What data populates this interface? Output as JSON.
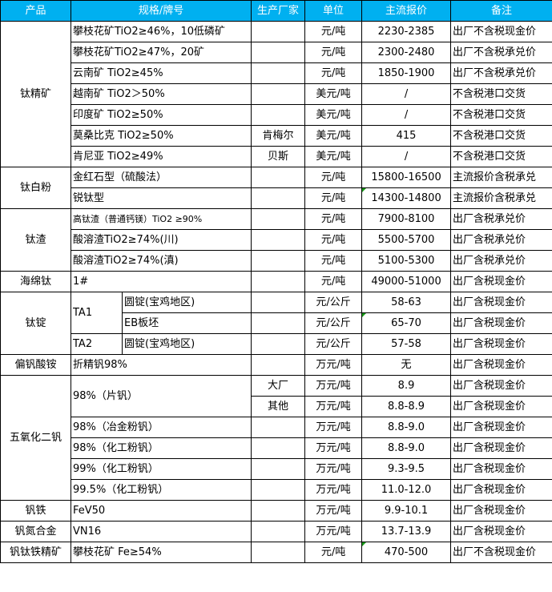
{
  "header": {
    "product": "产品",
    "spec": "规格/牌号",
    "maker": "生产厂家",
    "unit": "单位",
    "price": "主流报价",
    "note": "备注"
  },
  "colors": {
    "header_bg": "#00b0f0",
    "header_text": "#ffffff",
    "comment_marker": "#1a9b1a"
  },
  "products": [
    {
      "name": "钛精矿",
      "items": [
        {
          "spec": "攀枝花矿TiO2≥46%，10低磷矿",
          "maker": "",
          "unit": "元/吨",
          "price": "2230-2385",
          "note": "出厂不含税现金价"
        },
        {
          "spec": "攀枝花矿TiO2≥47%，20矿",
          "maker": "",
          "unit": "元/吨",
          "price": "2300-2480",
          "note": "出厂不含税承兑价"
        },
        {
          "spec": "云南矿 TiO2≥45%",
          "maker": "",
          "unit": "元/吨",
          "price": "1850-1900",
          "note": "出厂不含税承兑价"
        },
        {
          "spec": "越南矿 TiO2＞50%",
          "maker": "",
          "unit": "美元/吨",
          "price": "/",
          "note": "不含税港口交货"
        },
        {
          "spec": "印度矿 TiO2≥50%",
          "maker": "",
          "unit": "美元/吨",
          "price": "/",
          "note": "不含税港口交货"
        },
        {
          "spec": "莫桑比克 TiO2≥50%",
          "maker": "肯梅尔",
          "unit": "美元/吨",
          "price": "415",
          "note": "不含税港口交货"
        },
        {
          "spec": "肯尼亚 TiO2≥49%",
          "maker": "贝斯",
          "unit": "美元/吨",
          "price": "/",
          "note": "不含税港口交货"
        }
      ]
    },
    {
      "name": "钛白粉",
      "items": [
        {
          "spec": "金红石型（硫酸法）",
          "maker": "",
          "unit": "元/吨",
          "price": "15800-16500",
          "note": "主流报价含税承兑"
        },
        {
          "spec": "锐钛型",
          "maker": "",
          "unit": "元/吨",
          "price": "14300-14800",
          "note": "主流报价含税承兑",
          "marked": true
        }
      ]
    },
    {
      "name": "钛渣",
      "items": [
        {
          "spec": "高钛渣（普通钙镁）TiO2 ≥90%",
          "small": true,
          "maker": "",
          "unit": "元/吨",
          "price": "7900-8100",
          "note": "出厂含税承兑价"
        },
        {
          "spec": "酸溶渣TiO2≥74%(川)",
          "maker": "",
          "unit": "元/吨",
          "price": "5500-5700",
          "note": "出厂含税承兑价"
        },
        {
          "spec": "酸溶渣TiO2≥74%(滇)",
          "maker": "",
          "unit": "元/吨",
          "price": "5100-5300",
          "note": "出厂含税承兑价"
        }
      ]
    },
    {
      "name": "海绵钛",
      "items": [
        {
          "spec": "1#",
          "maker": "",
          "unit": "元/吨",
          "price": "49000-51000",
          "note": "出厂含税现金价"
        }
      ]
    },
    {
      "name": "钛锭",
      "items": [
        {
          "spec": "TA1",
          "sub": "圆锭(宝鸡地区)",
          "maker": "",
          "unit": "元/公斤",
          "price": "58-63",
          "note": "出厂含税现金价"
        },
        {
          "spec": "TA1",
          "sub": "EB板坯",
          "maker": "",
          "unit": "元/公斤",
          "price": "65-70",
          "note": "出厂含税现金价",
          "marked": true
        },
        {
          "spec": "TA2",
          "sub": "圆锭(宝鸡地区)",
          "maker": "",
          "unit": "元/公斤",
          "price": "57-58",
          "note": "出厂含税现金价"
        }
      ]
    },
    {
      "name": "偏钒酸铵",
      "items": [
        {
          "spec": "折精钒98%",
          "maker": "",
          "unit": "万元/吨",
          "price": "无",
          "note": "出厂含税现金价"
        }
      ]
    },
    {
      "name": "五氧化二钒",
      "items": [
        {
          "spec": "98%（片钒）",
          "maker": "大厂",
          "unit": "万元/吨",
          "price": "8.9",
          "note": "出厂含税现金价"
        },
        {
          "spec": "98%（片钒）",
          "maker": "其他",
          "unit": "万元/吨",
          "price": "8.8-8.9",
          "note": "出厂含税现金价"
        },
        {
          "spec": "98%（冶金粉钒）",
          "maker": "",
          "unit": "万元/吨",
          "price": "8.8-9.0",
          "note": "出厂含税现金价"
        },
        {
          "spec": "98%（化工粉钒）",
          "maker": "",
          "unit": "万元/吨",
          "price": "8.8-9.0",
          "note": "出厂含税现金价"
        },
        {
          "spec": "99%（化工粉钒）",
          "maker": "",
          "unit": "万元/吨",
          "price": "9.3-9.5",
          "note": "出厂含税现金价"
        },
        {
          "spec": "99.5%（化工粉钒）",
          "maker": "",
          "unit": "万元/吨",
          "price": "11.0-12.0",
          "note": "出厂含税现金价"
        }
      ]
    },
    {
      "name": "钒铁",
      "items": [
        {
          "spec": "FeV50",
          "maker": "",
          "unit": "万元/吨",
          "price": "9.9-10.1",
          "note": "出厂含税现金价"
        }
      ]
    },
    {
      "name": "钒氮合金",
      "items": [
        {
          "spec": "VN16",
          "maker": "",
          "unit": "万元/吨",
          "price": "13.7-13.9",
          "note": "出厂含税现金价"
        }
      ]
    },
    {
      "name": "钒钛铁精矿",
      "items": [
        {
          "spec": "攀枝花矿 Fe≥54%",
          "maker": "",
          "unit": "元/吨",
          "price": "470-500",
          "note": "出厂不含税现金价",
          "marked": true
        }
      ]
    }
  ]
}
